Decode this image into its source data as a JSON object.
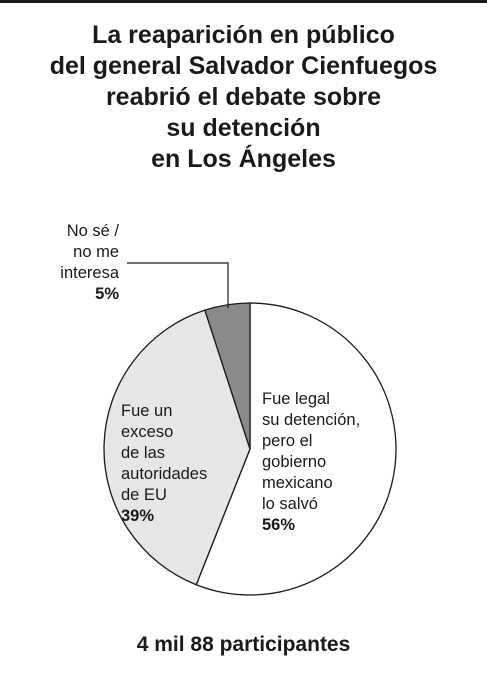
{
  "chart_data": {
    "type": "pie",
    "title_lines": [
      "La reaparición en público",
      "del general Salvador Cienfuegos",
      "reabrió el debate sobre",
      "su detención",
      "en Los Ángeles"
    ],
    "slices": [
      {
        "label_lines": [
          "Fue legal",
          "su detención,",
          "pero el",
          "gobierno",
          "mexicano",
          "lo salvó"
        ],
        "value": 56,
        "value_label": "56%",
        "color": "#ffffff"
      },
      {
        "label_lines": [
          "Fue un",
          "exceso",
          "de las",
          "autoridades",
          "de EU"
        ],
        "value": 39,
        "value_label": "39%",
        "color": "#e6e6e6"
      },
      {
        "label_lines": [
          "No sé /",
          "no me",
          "interesa"
        ],
        "value": 5,
        "value_label": "5%",
        "color": "#8a8a8a"
      }
    ],
    "start": "12 o'clock",
    "direction": "clockwise",
    "footer": "4 mil 88 participantes"
  }
}
